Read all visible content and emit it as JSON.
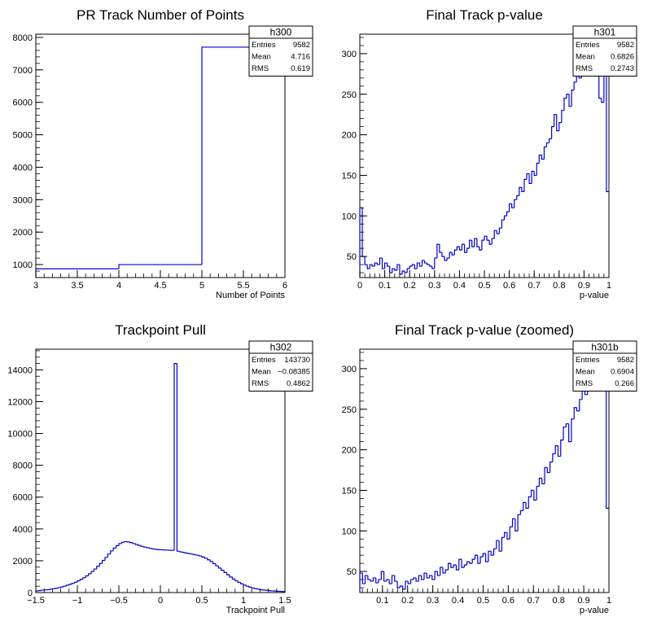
{
  "chart_data": [
    {
      "type": "bar",
      "title": "PR Track Number of Points",
      "xlabel": "Number of Points",
      "ylabel": "",
      "xlim": [
        3,
        6
      ],
      "ylim": [
        600,
        8100
      ],
      "xticks": [
        3,
        3.5,
        4,
        4.5,
        5,
        5.5,
        6
      ],
      "xtick_labels": [
        "3",
        "3.5",
        "4",
        "4.5",
        "5",
        "5.5",
        "6"
      ],
      "yticks": [
        1000,
        2000,
        3000,
        4000,
        5000,
        6000,
        7000,
        8000
      ],
      "ytick_labels": [
        "1000",
        "2000",
        "3000",
        "4000",
        "5000",
        "6000",
        "7000",
        "8000"
      ],
      "bin_edges": [
        3,
        4,
        5,
        6
      ],
      "values": [
        870,
        1000,
        7700
      ],
      "grid": false,
      "stats": {
        "name": "h300",
        "rows": [
          [
            "Entries",
            "9582"
          ],
          [
            "Mean",
            "4.716"
          ],
          [
            "RMS",
            "0.619"
          ]
        ]
      }
    },
    {
      "type": "bar",
      "title": "Final Track p-value",
      "xlabel": "p-value",
      "ylabel": "",
      "xlim": [
        0,
        1
      ],
      "ylim": [
        24,
        324
      ],
      "xticks": [
        0,
        0.1,
        0.2,
        0.3,
        0.4,
        0.5,
        0.6,
        0.7,
        0.8,
        0.9,
        1
      ],
      "xtick_labels": [
        "0",
        "0.1",
        "0.2",
        "0.3",
        "0.4",
        "0.5",
        "0.6",
        "0.7",
        "0.8",
        "0.9",
        "1"
      ],
      "yticks": [
        50,
        100,
        150,
        200,
        250,
        300
      ],
      "ytick_labels": [
        "50",
        "100",
        "150",
        "200",
        "250",
        "300"
      ],
      "bin_edges_range": [
        0,
        1
      ],
      "values": [
        110,
        50,
        40,
        35,
        40,
        38,
        42,
        40,
        48,
        35,
        42,
        38,
        30,
        35,
        33,
        40,
        28,
        32,
        30,
        35,
        38,
        40,
        35,
        42,
        38,
        45,
        42,
        40,
        38,
        35,
        48,
        65,
        55,
        50,
        45,
        48,
        55,
        52,
        58,
        62,
        58,
        65,
        55,
        60,
        70,
        62,
        72,
        62,
        58,
        70,
        75,
        70,
        65,
        72,
        82,
        78,
        85,
        95,
        100,
        105,
        115,
        110,
        120,
        125,
        135,
        130,
        145,
        152,
        140,
        155,
        150,
        165,
        175,
        170,
        185,
        190,
        195,
        210,
        225,
        205,
        215,
        230,
        245,
        250,
        235,
        255,
        265,
        280,
        270,
        300,
        295,
        310,
        290,
        300,
        320,
        330,
        245,
        240,
        300,
        130
      ],
      "grid": false,
      "stats": {
        "name": "h301",
        "rows": [
          [
            "Entries",
            "9582"
          ],
          [
            "Mean",
            "0.6826"
          ],
          [
            "RMS",
            "0.2743"
          ]
        ]
      }
    },
    {
      "type": "bar",
      "title": "Trackpoint Pull",
      "xlabel": "Trackpoint Pull",
      "ylabel": "",
      "xlim": [
        -1.5,
        1.5
      ],
      "ylim": [
        0,
        15300
      ],
      "xticks": [
        -1.5,
        -1,
        -0.5,
        0,
        0.5,
        1,
        1.5
      ],
      "xtick_labels": [
        "−1.5",
        "−1",
        "−0.5",
        "0",
        "0.5",
        "1",
        "1.5"
      ],
      "yticks": [
        0,
        2000,
        4000,
        6000,
        8000,
        10000,
        12000,
        14000
      ],
      "ytick_labels": [
        "0",
        "2000",
        "4000",
        "6000",
        "8000",
        "10000",
        "12000",
        "14000"
      ],
      "bin_edges_range": [
        -1.5,
        1.5
      ],
      "values": [
        100,
        120,
        150,
        170,
        180,
        210,
        240,
        270,
        310,
        350,
        400,
        460,
        520,
        580,
        650,
        740,
        830,
        930,
        1050,
        1180,
        1320,
        1480,
        1650,
        1830,
        2020,
        2210,
        2420,
        2620,
        2800,
        2950,
        3080,
        3160,
        3200,
        3180,
        3140,
        3080,
        3020,
        2960,
        2900,
        2860,
        2820,
        2780,
        2740,
        2720,
        2700,
        2690,
        2680,
        2670,
        2660,
        2650,
        14400,
        2600,
        2560,
        2520,
        2480,
        2450,
        2420,
        2380,
        2350,
        2300,
        2240,
        2160,
        2060,
        1950,
        1820,
        1680,
        1540,
        1400,
        1260,
        1120,
        980,
        850,
        740,
        640,
        550,
        470,
        400,
        340,
        290,
        250,
        210,
        180,
        160,
        140,
        120,
        105,
        95,
        85,
        75,
        65
      ],
      "grid": false,
      "stats": {
        "name": "h302",
        "rows": [
          [
            "Entries",
            "143730"
          ],
          [
            "Mean",
            "−0.08385"
          ],
          [
            "RMS",
            "0.4862"
          ]
        ]
      }
    },
    {
      "type": "bar",
      "title": "Final Track p-value (zoomed)",
      "xlabel": "p-value",
      "ylabel": "",
      "xlim": [
        0.01,
        1
      ],
      "ylim": [
        24,
        324
      ],
      "xticks": [
        0.1,
        0.2,
        0.3,
        0.4,
        0.5,
        0.6,
        0.7,
        0.8,
        0.9,
        1
      ],
      "xtick_labels": [
        "0.1",
        "0.2",
        "0.3",
        "0.4",
        "0.5",
        "0.6",
        "0.7",
        "0.8",
        "0.9",
        "1"
      ],
      "yticks": [
        50,
        100,
        150,
        200,
        250,
        300
      ],
      "ytick_labels": [
        "50",
        "100",
        "150",
        "200",
        "250",
        "300"
      ],
      "bin_edges_range": [
        0.01,
        1
      ],
      "values": [
        48,
        35,
        45,
        40,
        38,
        42,
        36,
        40,
        50,
        38,
        40,
        35,
        45,
        38,
        30,
        32,
        28,
        38,
        35,
        40,
        42,
        38,
        45,
        40,
        48,
        42,
        45,
        40,
        50,
        45,
        55,
        48,
        52,
        60,
        55,
        58,
        52,
        65,
        55,
        58,
        62,
        60,
        65,
        70,
        60,
        68,
        72,
        62,
        75,
        70,
        78,
        88,
        75,
        92,
        98,
        90,
        105,
        115,
        100,
        120,
        125,
        135,
        128,
        142,
        150,
        138,
        155,
        165,
        158,
        178,
        172,
        185,
        195,
        205,
        192,
        212,
        228,
        232,
        210,
        238,
        252,
        248,
        262,
        278,
        268,
        298,
        288,
        310,
        320,
        300,
        298,
        305,
        128
      ],
      "grid": false,
      "stats": {
        "name": "h301b",
        "rows": [
          [
            "Entries",
            "9582"
          ],
          [
            "Mean",
            "0.6904"
          ],
          [
            "RMS",
            "0.266"
          ]
        ]
      }
    }
  ]
}
